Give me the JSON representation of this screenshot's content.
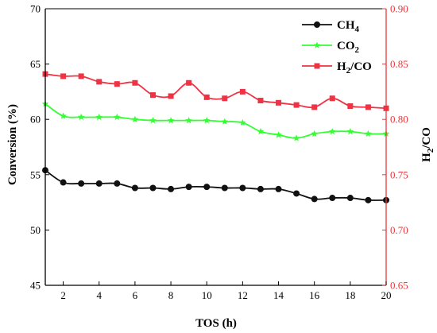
{
  "colors": {
    "axis": "#000000",
    "right_axis": "#e8383d"
  },
  "chart_data": {
    "type": "line",
    "xlabel": "TOS (h)",
    "ylabel": "Conversion (%)",
    "y2label": "H2/CO",
    "xlim": [
      1,
      20
    ],
    "ylim": [
      45,
      70
    ],
    "y2lim": [
      0.65,
      0.9
    ],
    "xticks": [
      2,
      4,
      6,
      8,
      10,
      12,
      14,
      16,
      18,
      20
    ],
    "yticks": [
      45,
      50,
      55,
      60,
      65,
      70
    ],
    "y2ticks": [
      "0.65",
      "0.70",
      "0.75",
      "0.80",
      "0.85",
      "0.90"
    ],
    "legend_position": "top-right",
    "x": [
      1,
      2,
      3,
      4,
      5,
      6,
      7,
      8,
      9,
      10,
      11,
      12,
      13,
      14,
      15,
      16,
      17,
      18,
      19,
      20
    ],
    "series": [
      {
        "name": "CH4",
        "label_base": "CH",
        "label_sub": "4",
        "axis": "left",
        "color": "#111111",
        "marker": "circle",
        "values": [
          55.4,
          54.3,
          54.2,
          54.2,
          54.2,
          53.8,
          53.8,
          53.7,
          53.9,
          53.9,
          53.8,
          53.8,
          53.7,
          53.7,
          53.3,
          52.8,
          52.9,
          52.9,
          52.7,
          52.7
        ]
      },
      {
        "name": "CO2",
        "label_base": "CO",
        "label_sub": "2",
        "axis": "left",
        "color": "#33ff33",
        "marker": "star",
        "values": [
          61.4,
          60.3,
          60.2,
          60.2,
          60.2,
          60.0,
          59.9,
          59.9,
          59.9,
          59.9,
          59.8,
          59.7,
          58.9,
          58.6,
          58.3,
          58.7,
          58.9,
          58.9,
          58.7,
          58.7
        ]
      },
      {
        "name": "H2/CO",
        "label_base": "H",
        "label_sub": "2",
        "label_tail": "/CO",
        "axis": "right",
        "color": "#ee3344",
        "marker": "square",
        "values": [
          0.841,
          0.839,
          0.839,
          0.834,
          0.832,
          0.833,
          0.822,
          0.821,
          0.833,
          0.82,
          0.819,
          0.825,
          0.817,
          0.815,
          0.813,
          0.811,
          0.819,
          0.812,
          0.811,
          0.81
        ]
      }
    ]
  }
}
